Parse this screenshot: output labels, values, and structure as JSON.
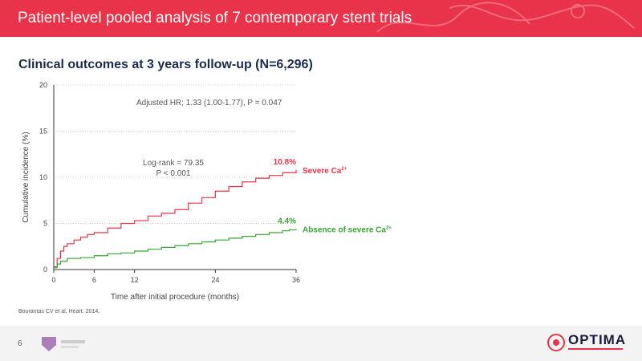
{
  "slide": {
    "title": "Patient-level pooled analysis of 7 contemporary stent trials",
    "subtitle": "Clinical outcomes at 3 years follow-up (N=6,296)",
    "citation": "Bourantas CV et al. Heart. 2014.",
    "page_number": "6",
    "logo_text": "OPTIMA"
  },
  "colors": {
    "banner": "#e8334a",
    "severe": "#e8334a",
    "absence": "#3aa535"
  },
  "chart_data": {
    "type": "line",
    "title": "",
    "xlabel": "Time after initial procedure (months)",
    "ylabel": "Cumulative incidence (%)",
    "xlim": [
      0,
      36
    ],
    "ylim": [
      0,
      20
    ],
    "x_ticks": [
      0,
      6,
      12,
      24,
      36
    ],
    "y_ticks": [
      0,
      5,
      10,
      15,
      20
    ],
    "grid": "horizontal dotted",
    "annotations": {
      "hr": "Adjusted HR; 1.33 (1.00-1.77), P = 0.047",
      "logrank_line1": "Log-rank = 79.35",
      "logrank_line2": "P < 0.001"
    },
    "series": [
      {
        "name": "Severe Ca",
        "superscript": "2+",
        "end_label": "10.8%",
        "points": [
          [
            0,
            0.3
          ],
          [
            0.5,
            1.2
          ],
          [
            1,
            2.0
          ],
          [
            1.5,
            2.5
          ],
          [
            2,
            2.8
          ],
          [
            3,
            3.2
          ],
          [
            4,
            3.5
          ],
          [
            5,
            3.8
          ],
          [
            6,
            4.0
          ],
          [
            8,
            4.5
          ],
          [
            10,
            5.0
          ],
          [
            12,
            5.3
          ],
          [
            14,
            5.8
          ],
          [
            16,
            6.1
          ],
          [
            18,
            6.5
          ],
          [
            20,
            7.2
          ],
          [
            22,
            7.8
          ],
          [
            24,
            8.5
          ],
          [
            26,
            9.0
          ],
          [
            28,
            9.5
          ],
          [
            30,
            9.9
          ],
          [
            32,
            10.2
          ],
          [
            34,
            10.5
          ],
          [
            36,
            10.8
          ]
        ]
      },
      {
        "name": "Absence of severe Ca",
        "superscript": "2+",
        "end_label": "4.4%",
        "points": [
          [
            0,
            0.2
          ],
          [
            0.5,
            0.6
          ],
          [
            1,
            0.9
          ],
          [
            2,
            1.2
          ],
          [
            4,
            1.3
          ],
          [
            6,
            1.5
          ],
          [
            8,
            1.7
          ],
          [
            10,
            1.8
          ],
          [
            12,
            2.0
          ],
          [
            14,
            2.2
          ],
          [
            16,
            2.4
          ],
          [
            18,
            2.6
          ],
          [
            20,
            2.8
          ],
          [
            22,
            3.0
          ],
          [
            24,
            3.2
          ],
          [
            26,
            3.4
          ],
          [
            28,
            3.6
          ],
          [
            30,
            3.8
          ],
          [
            32,
            4.0
          ],
          [
            34,
            4.2
          ],
          [
            35,
            4.3
          ],
          [
            36,
            4.4
          ]
        ]
      }
    ]
  }
}
